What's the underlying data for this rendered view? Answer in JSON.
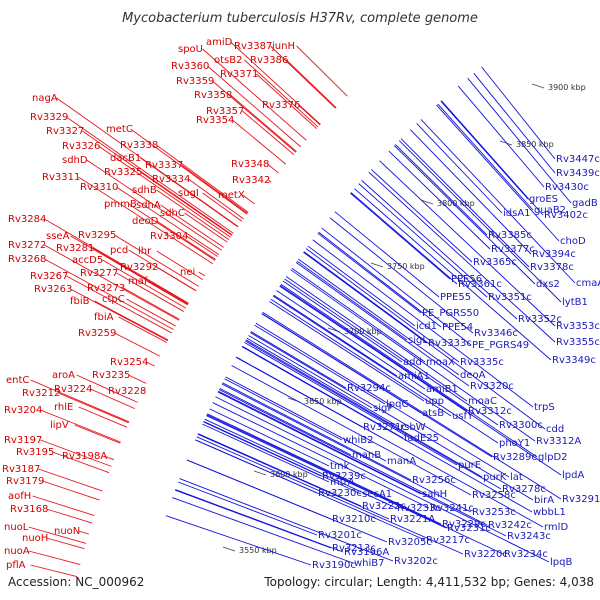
{
  "title": "Mycobacterium tuberculosis H37Rv, complete genome",
  "footer": {
    "accession": "Accession: NC_000962",
    "topology": "Topology: circular; Length: 4,411,532 bp; Genes: 4,038"
  },
  "colors": {
    "forward": "#e8141c",
    "reverse": "#1010e0",
    "backbone": "#8a8a8a",
    "rna": "#228b22"
  },
  "kbp_labels": [
    "3900 kbp",
    "3850 kbp",
    "3800 kbp",
    "3750 kbp",
    "3700 kbp",
    "3650 kbp",
    "3600 kbp",
    "3550 kbp"
  ],
  "forward_genes": [
    "spoU",
    "amiD",
    "Rv3387",
    "junH",
    "Rv3360",
    "otsB2",
    "Rv3386",
    "Rv3359",
    "Rv3371",
    "Rv3358",
    "Rv3376",
    "Rv3357",
    "Rv3354",
    "nagA",
    "Rv3329",
    "metC",
    "Rv3327",
    "Rv3338",
    "Rv3326",
    "dacB1",
    "sdhD",
    "Rv3337",
    "Rv3325",
    "Rv3311",
    "Rv3334",
    "Rv3348",
    "Rv3310",
    "sdhB",
    "sugI",
    "Rv3342",
    "pmmB",
    "sdhA",
    "metX",
    "deoD",
    "sdhC",
    "Rv3284",
    "sseA",
    "Rv3295",
    "Rv3304",
    "Rv3281",
    "accD5",
    "pcd",
    "lhr",
    "Rv3272",
    "Rv3292",
    "Rv3268",
    "Rv3277",
    "maf",
    "nei",
    "Rv3267",
    "Rv3273",
    "Rv3263",
    "fbiB",
    "ctpC",
    "fbiA",
    "Rv3259",
    "Rv3254",
    "Rv3235",
    "entC",
    "aroA",
    "Rv3212",
    "Rv3224",
    "Rv3228",
    "Rv3204",
    "rhlE",
    "lipV",
    "Rv3197",
    "Rv3195",
    "Rv3198A",
    "Rv3187",
    "Rv3179",
    "aofH",
    "Rv3168",
    "nuoL",
    "nuoN",
    "nuoH",
    "nuoA",
    "pflA"
  ],
  "reverse_genes": [
    "Rv3447c",
    "Rv3439c",
    "Rv3430c",
    "gadB",
    "groES",
    "Rv3402c",
    "idsA1",
    "guaB2",
    "choD",
    "Rv3385c",
    "Rv3394c",
    "Rv3377c",
    "Rv3378c",
    "Rv3365c",
    "cmaA1",
    "Rv3361c",
    "dxs2",
    "PPE56",
    "Rv3351c",
    "lytB1",
    "PPE55",
    "PE_PGRS50",
    "Rv3352c",
    "Rv3353c",
    "icd1",
    "PPE54",
    "Rv3346c",
    "Rv3355c",
    "sigL",
    "Rv3333c",
    "PE_PGRS49",
    "Rv3349c",
    "add",
    "moaX",
    "Rv3335c",
    "amiA1",
    "deoA",
    "Rv3294c",
    "amiB1",
    "Rv3320c",
    "lpqC",
    "upp",
    "moaC",
    "trpS",
    "sigF",
    "atsB",
    "Rv3312c",
    "Rv3271c",
    "rsbW",
    "Rv3300c",
    "cdd",
    "whiB2",
    "fadE25",
    "usfY",
    "phoY1",
    "Rv3312A",
    "manB",
    "Rv3289c",
    "glpD2",
    "tmk",
    "manA",
    "Rv3239c",
    "purE",
    "lpdA",
    "mtrA",
    "Rv3256c",
    "purK",
    "lat",
    "Rv3230c",
    "Rv3278c",
    "Rv3291c",
    "secA1",
    "sahH",
    "Rv3258c",
    "birA",
    "Rv3222c",
    "Rv3233c",
    "Rv3241c",
    "Rv3253c",
    "wbbL1",
    "Rv3210c",
    "Rv3221A",
    "Rv3229c",
    "rmlD",
    "Rv3201c",
    "Rv3242c",
    "Rv3213c",
    "Rv3231c",
    "Rv3243c",
    "Rv3196A",
    "Rv3205c",
    "Rv3217c",
    "Rv3220c",
    "Rv3234c",
    "Rv3190c",
    "whiB7",
    "Rv3202c",
    "lpqB"
  ]
}
